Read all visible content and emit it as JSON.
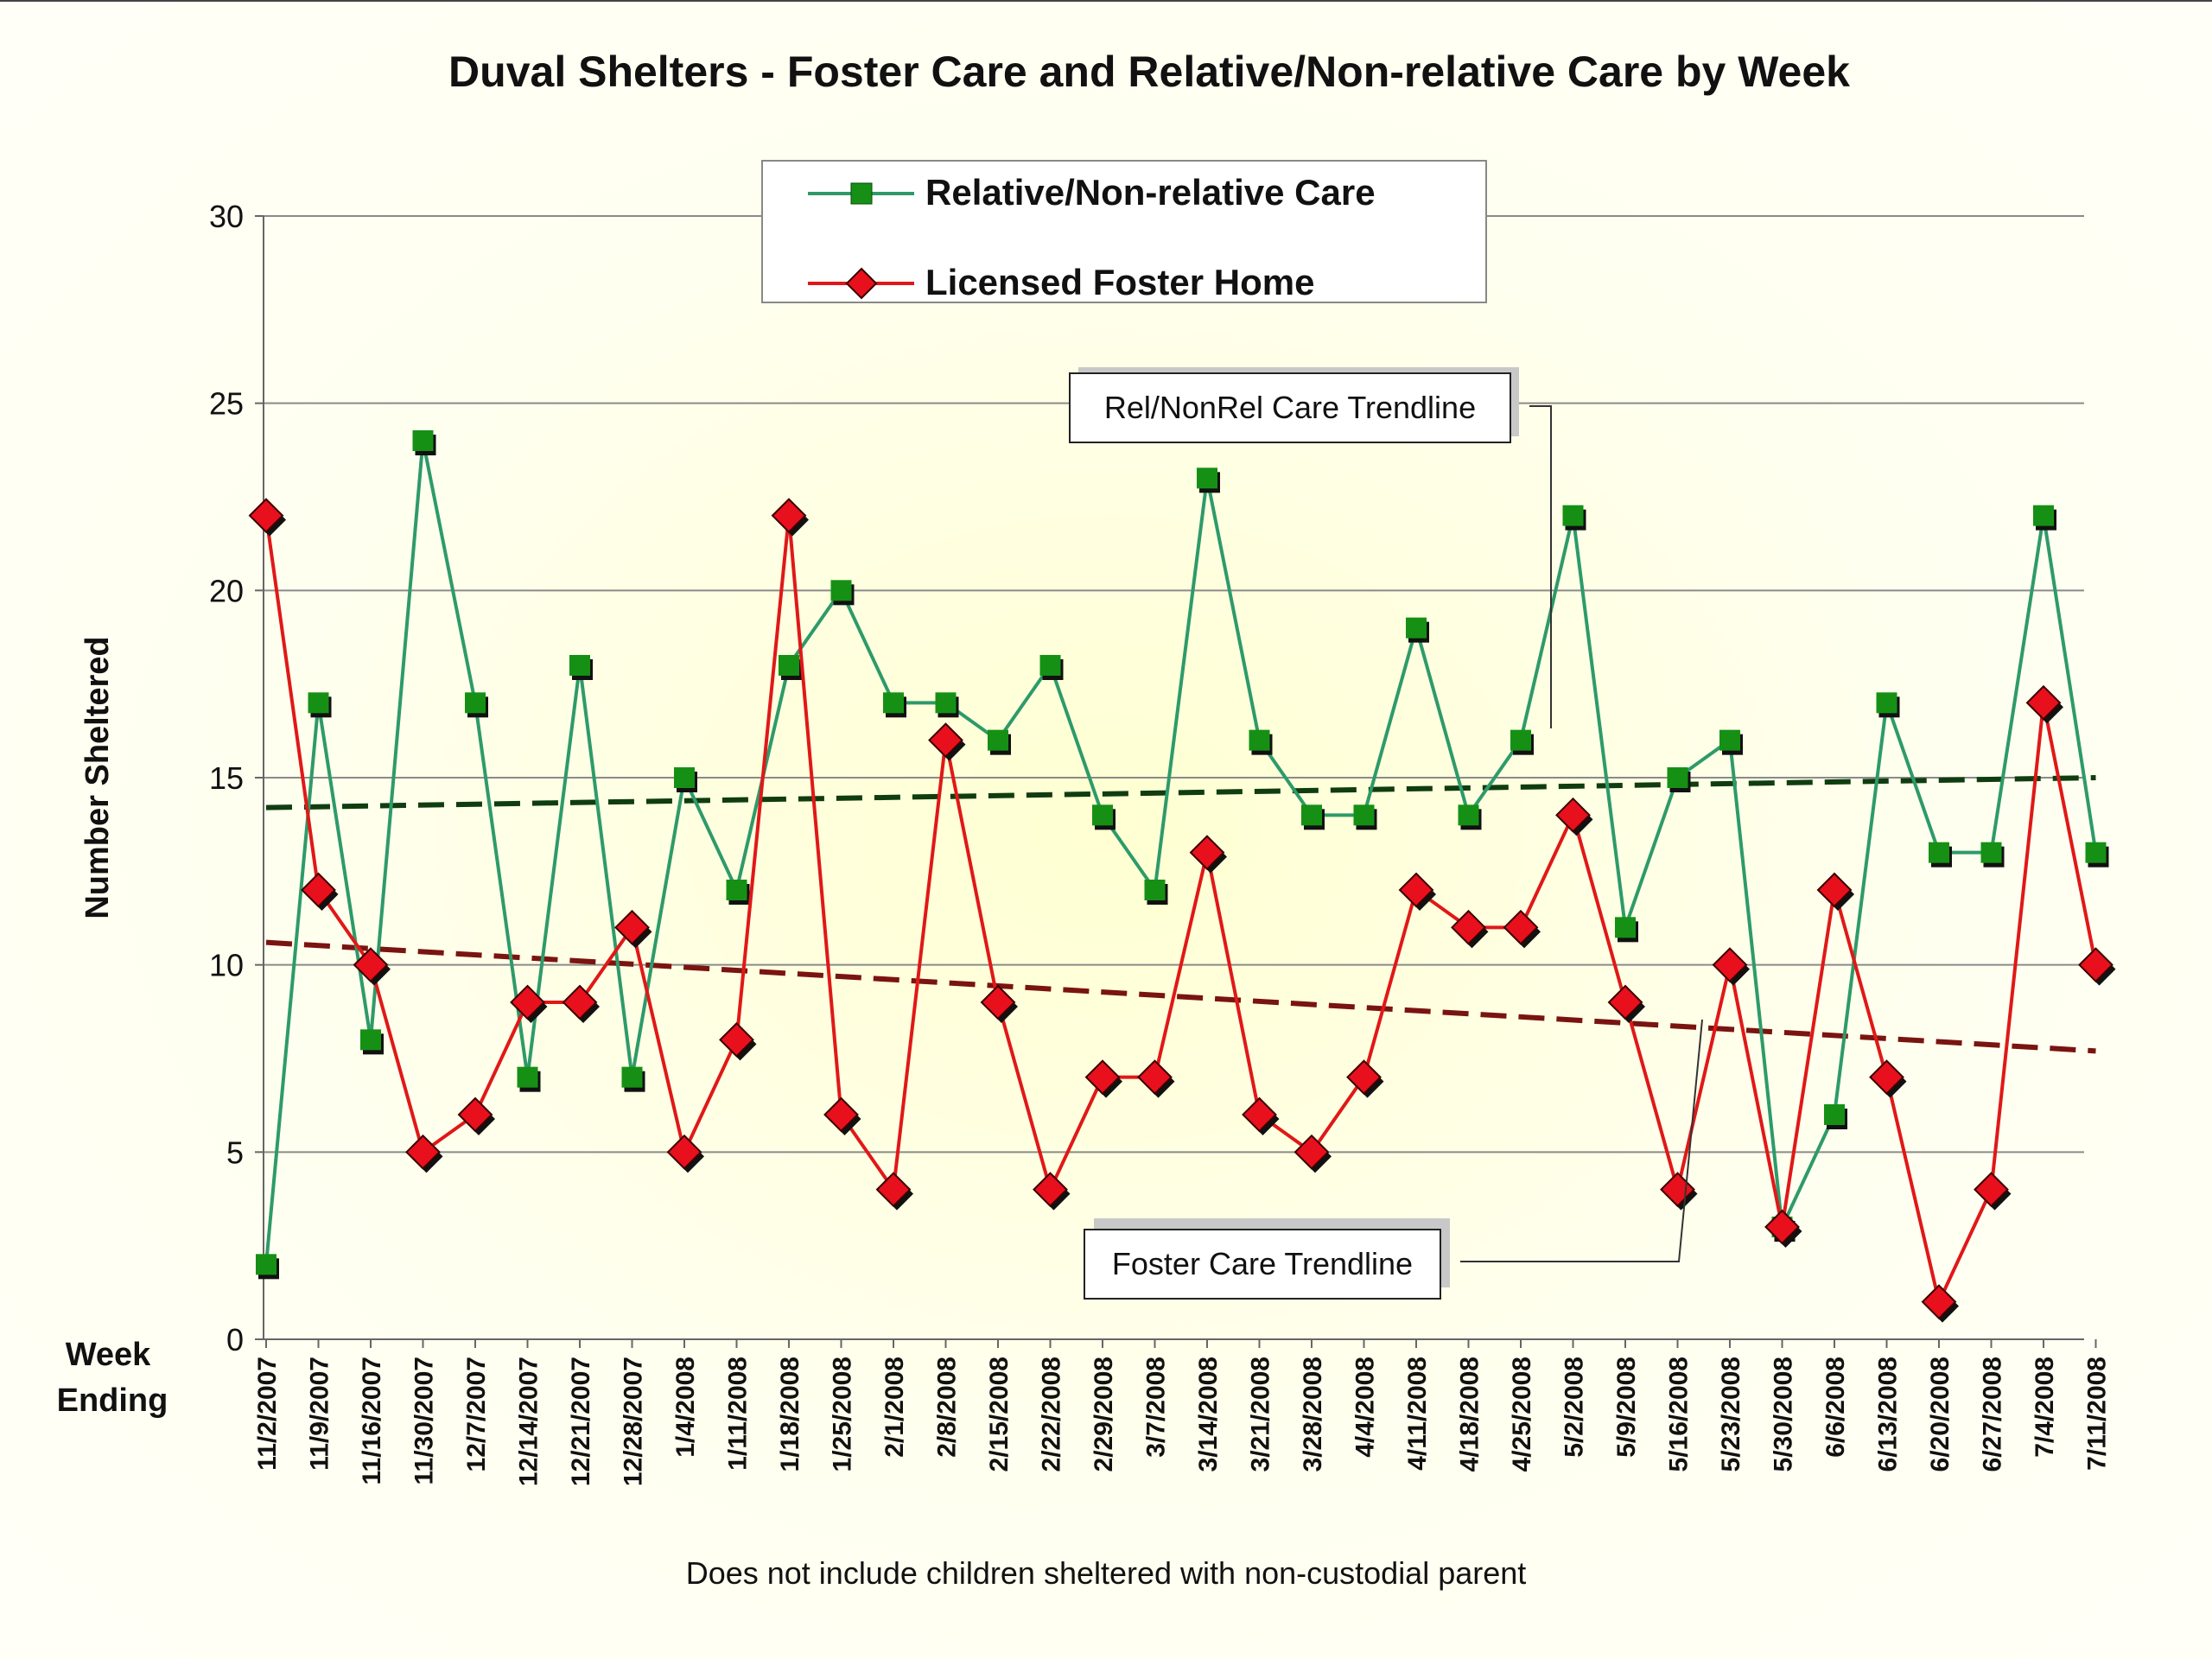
{
  "chart_data": {
    "type": "line",
    "title": "Duval Shelters - Foster Care and Relative/Non-relative Care by Week",
    "ylabel": "Number Sheltered",
    "xlabel": [
      "Week",
      "Ending"
    ],
    "footnote": "Does not include children sheltered with non-custodial parent",
    "ylim": [
      0,
      30
    ],
    "yticks": [
      0,
      5,
      10,
      15,
      20,
      25,
      30
    ],
    "grid": true,
    "legend_position": "top-center",
    "categories": [
      "11/2/2007",
      "11/9/2007",
      "11/16/2007",
      "11/30/2007",
      "12/7/2007",
      "12/14/2007",
      "12/21/2007",
      "12/28/2007",
      "1/4/2008",
      "1/11/2008",
      "1/18/2008",
      "1/25/2008",
      "2/1/2008",
      "2/8/2008",
      "2/15/2008",
      "2/22/2008",
      "2/29/2008",
      "3/7/2008",
      "3/14/2008",
      "3/21/2008",
      "3/28/2008",
      "4/4/2008",
      "4/11/2008",
      "4/18/2008",
      "4/25/2008",
      "5/2/2008",
      "5/9/2008",
      "5/16/2008",
      "5/23/2008",
      "5/30/2008",
      "6/6/2008",
      "6/13/2008",
      "6/20/2008",
      "6/27/2008",
      "7/4/2008",
      "7/11/2008"
    ],
    "series": [
      {
        "name": "Relative/Non-relative Care",
        "color": "#2e9a6a",
        "marker": "square",
        "marker_color": "#159015",
        "values": [
          2,
          17,
          8,
          24,
          17,
          7,
          18,
          7,
          15,
          12,
          18,
          20,
          17,
          17,
          16,
          18,
          14,
          12,
          23,
          16,
          14,
          14,
          19,
          14,
          16,
          22,
          11,
          15,
          16,
          3,
          6,
          17,
          13,
          13,
          22,
          13
        ]
      },
      {
        "name": "Licensed Foster Home",
        "color": "#e01818",
        "marker": "diamond",
        "marker_color": "#e8101c",
        "values": [
          22,
          12,
          10,
          5,
          6,
          9,
          9,
          11,
          5,
          8,
          22,
          6,
          4,
          16,
          9,
          4,
          7,
          7,
          13,
          6,
          5,
          7,
          12,
          11,
          11,
          14,
          9,
          4,
          10,
          3,
          12,
          7,
          1,
          4,
          17,
          10
        ]
      }
    ],
    "trendlines": [
      {
        "label": "Rel/NonRel Care Trendline",
        "series": "Relative/Non-relative Care",
        "color": "#0f3d10",
        "start": 14.2,
        "end": 15.0
      },
      {
        "label": "Foster Care Trendline",
        "series": "Licensed Foster Home",
        "color": "#7a1410",
        "start": 10.6,
        "end": 7.7
      }
    ]
  }
}
